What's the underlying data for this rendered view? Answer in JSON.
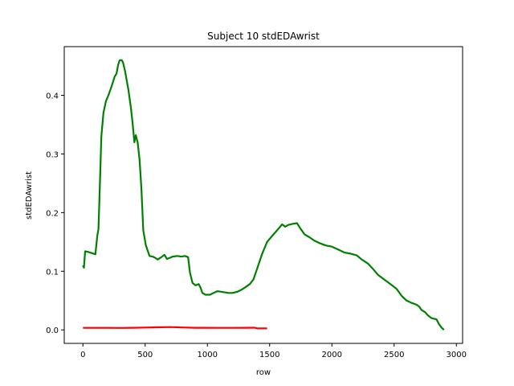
{
  "chart_data": {
    "type": "line",
    "title": "Subject 10 stdEDAwrist",
    "xlabel": "row",
    "ylabel": "stdEDAwrist",
    "xlim": [
      -150,
      3050
    ],
    "ylim": [
      -0.023,
      0.483
    ],
    "xticks": [
      0,
      500,
      1000,
      1500,
      2000,
      2500,
      3000
    ],
    "yticks": [
      0.0,
      0.1,
      0.2,
      0.3,
      0.4
    ],
    "xtick_labels": [
      "0",
      "500",
      "1000",
      "1500",
      "2000",
      "2500",
      "3000"
    ],
    "ytick_labels": [
      "0.0",
      "0.1",
      "0.2",
      "0.3",
      "0.4"
    ],
    "grid": false,
    "series": [
      {
        "color": "#008000",
        "points": [
          [
            0,
            0.11
          ],
          [
            8,
            0.106
          ],
          [
            18,
            0.134
          ],
          [
            40,
            0.133
          ],
          [
            70,
            0.131
          ],
          [
            100,
            0.129
          ],
          [
            115,
            0.16
          ],
          [
            125,
            0.172
          ],
          [
            135,
            0.24
          ],
          [
            148,
            0.33
          ],
          [
            165,
            0.37
          ],
          [
            185,
            0.39
          ],
          [
            205,
            0.4
          ],
          [
            230,
            0.415
          ],
          [
            255,
            0.432
          ],
          [
            270,
            0.437
          ],
          [
            283,
            0.452
          ],
          [
            295,
            0.46
          ],
          [
            312,
            0.46
          ],
          [
            322,
            0.456
          ],
          [
            340,
            0.44
          ],
          [
            365,
            0.41
          ],
          [
            385,
            0.38
          ],
          [
            400,
            0.35
          ],
          [
            413,
            0.32
          ],
          [
            425,
            0.332
          ],
          [
            440,
            0.32
          ],
          [
            455,
            0.29
          ],
          [
            470,
            0.24
          ],
          [
            485,
            0.17
          ],
          [
            505,
            0.145
          ],
          [
            520,
            0.135
          ],
          [
            535,
            0.126
          ],
          [
            560,
            0.125
          ],
          [
            580,
            0.123
          ],
          [
            600,
            0.12
          ],
          [
            630,
            0.124
          ],
          [
            655,
            0.128
          ],
          [
            675,
            0.121
          ],
          [
            700,
            0.123
          ],
          [
            720,
            0.125
          ],
          [
            760,
            0.126
          ],
          [
            790,
            0.125
          ],
          [
            820,
            0.126
          ],
          [
            845,
            0.124
          ],
          [
            860,
            0.098
          ],
          [
            880,
            0.08
          ],
          [
            905,
            0.076
          ],
          [
            930,
            0.078
          ],
          [
            945,
            0.072
          ],
          [
            960,
            0.063
          ],
          [
            985,
            0.06
          ],
          [
            1020,
            0.06
          ],
          [
            1050,
            0.063
          ],
          [
            1080,
            0.066
          ],
          [
            1110,
            0.065
          ],
          [
            1140,
            0.064
          ],
          [
            1170,
            0.063
          ],
          [
            1200,
            0.063
          ],
          [
            1240,
            0.065
          ],
          [
            1270,
            0.068
          ],
          [
            1300,
            0.072
          ],
          [
            1340,
            0.078
          ],
          [
            1370,
            0.086
          ],
          [
            1400,
            0.105
          ],
          [
            1440,
            0.13
          ],
          [
            1480,
            0.15
          ],
          [
            1520,
            0.16
          ],
          [
            1560,
            0.17
          ],
          [
            1600,
            0.18
          ],
          [
            1625,
            0.176
          ],
          [
            1650,
            0.179
          ],
          [
            1690,
            0.181
          ],
          [
            1720,
            0.182
          ],
          [
            1750,
            0.172
          ],
          [
            1780,
            0.163
          ],
          [
            1820,
            0.158
          ],
          [
            1860,
            0.152
          ],
          [
            1900,
            0.148
          ],
          [
            1950,
            0.144
          ],
          [
            2000,
            0.142
          ],
          [
            2050,
            0.137
          ],
          [
            2100,
            0.132
          ],
          [
            2150,
            0.13
          ],
          [
            2200,
            0.127
          ],
          [
            2240,
            0.12
          ],
          [
            2290,
            0.113
          ],
          [
            2330,
            0.104
          ],
          [
            2370,
            0.094
          ],
          [
            2420,
            0.086
          ],
          [
            2470,
            0.078
          ],
          [
            2520,
            0.07
          ],
          [
            2560,
            0.058
          ],
          [
            2600,
            0.05
          ],
          [
            2640,
            0.046
          ],
          [
            2680,
            0.043
          ],
          [
            2700,
            0.04
          ],
          [
            2720,
            0.034
          ],
          [
            2750,
            0.03
          ],
          [
            2770,
            0.025
          ],
          [
            2800,
            0.02
          ],
          [
            2840,
            0.018
          ],
          [
            2860,
            0.01
          ],
          [
            2880,
            0.004
          ],
          [
            2900,
            0.0
          ]
        ]
      },
      {
        "color": "#ff0000",
        "points": [
          [
            0,
            0.0035
          ],
          [
            100,
            0.0035
          ],
          [
            200,
            0.0035
          ],
          [
            300,
            0.0033
          ],
          [
            400,
            0.0036
          ],
          [
            500,
            0.004
          ],
          [
            600,
            0.0044
          ],
          [
            700,
            0.0048
          ],
          [
            800,
            0.0042
          ],
          [
            900,
            0.0036
          ],
          [
            1000,
            0.0036
          ],
          [
            1100,
            0.0035
          ],
          [
            1200,
            0.0035
          ],
          [
            1300,
            0.0036
          ],
          [
            1380,
            0.0037
          ],
          [
            1400,
            0.0025
          ],
          [
            1480,
            0.0025
          ]
        ]
      }
    ]
  }
}
